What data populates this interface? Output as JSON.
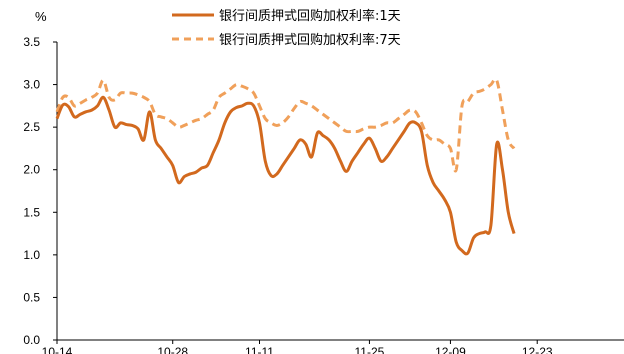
{
  "chart_data": {
    "type": "line",
    "unit_label": "%",
    "ylim": [
      0,
      3.5
    ],
    "yticks": [
      "0.0",
      "0.5",
      "1.0",
      "1.5",
      "2.0",
      "2.5",
      "3.0",
      "3.5"
    ],
    "xlim": [
      0,
      98
    ],
    "xticks": [
      {
        "x": 0,
        "label": "10-14"
      },
      {
        "x": 20,
        "label": "10-28"
      },
      {
        "x": 35,
        "label": "11-11"
      },
      {
        "x": 54,
        "label": "11-25"
      },
      {
        "x": 68,
        "label": "12-09"
      },
      {
        "x": 83,
        "label": "12-23"
      }
    ],
    "grid": false,
    "legend_position": "top",
    "series": [
      {
        "name": "银行间质押式回购加权利率:1天",
        "style": "solid",
        "color": "#D2691E",
        "points": [
          [
            0,
            2.6
          ],
          [
            1,
            2.76
          ],
          [
            2,
            2.74
          ],
          [
            3,
            2.62
          ],
          [
            4,
            2.65
          ],
          [
            5,
            2.68
          ],
          [
            6,
            2.7
          ],
          [
            7,
            2.75
          ],
          [
            8,
            2.85
          ],
          [
            9,
            2.7
          ],
          [
            10,
            2.5
          ],
          [
            11,
            2.55
          ],
          [
            12,
            2.53
          ],
          [
            13,
            2.52
          ],
          [
            14,
            2.48
          ],
          [
            15,
            2.35
          ],
          [
            16,
            2.68
          ],
          [
            17,
            2.35
          ],
          [
            18,
            2.25
          ],
          [
            19,
            2.15
          ],
          [
            20,
            2.05
          ],
          [
            21,
            1.85
          ],
          [
            22,
            1.92
          ],
          [
            23,
            1.95
          ],
          [
            24,
            1.97
          ],
          [
            25,
            2.02
          ],
          [
            26,
            2.05
          ],
          [
            27,
            2.2
          ],
          [
            28,
            2.35
          ],
          [
            29,
            2.55
          ],
          [
            30,
            2.68
          ],
          [
            31,
            2.73
          ],
          [
            32,
            2.75
          ],
          [
            33,
            2.78
          ],
          [
            34,
            2.75
          ],
          [
            35,
            2.55
          ],
          [
            36,
            2.1
          ],
          [
            37,
            1.93
          ],
          [
            38,
            1.95
          ],
          [
            39,
            2.05
          ],
          [
            40,
            2.15
          ],
          [
            41,
            2.25
          ],
          [
            42,
            2.35
          ],
          [
            43,
            2.3
          ],
          [
            44,
            2.15
          ],
          [
            45,
            2.43
          ],
          [
            46,
            2.4
          ],
          [
            47,
            2.35
          ],
          [
            48,
            2.25
          ],
          [
            49,
            2.1
          ],
          [
            50,
            1.98
          ],
          [
            51,
            2.1
          ],
          [
            52,
            2.2
          ],
          [
            53,
            2.3
          ],
          [
            54,
            2.37
          ],
          [
            55,
            2.25
          ],
          [
            56,
            2.1
          ],
          [
            57,
            2.15
          ],
          [
            58,
            2.25
          ],
          [
            59,
            2.35
          ],
          [
            60,
            2.45
          ],
          [
            61,
            2.55
          ],
          [
            62,
            2.55
          ],
          [
            63,
            2.45
          ],
          [
            64,
            2.05
          ],
          [
            65,
            1.85
          ],
          [
            66,
            1.75
          ],
          [
            67,
            1.65
          ],
          [
            68,
            1.5
          ],
          [
            69,
            1.15
          ],
          [
            70,
            1.05
          ],
          [
            71,
            1.02
          ],
          [
            72,
            1.2
          ],
          [
            73,
            1.25
          ],
          [
            74,
            1.27
          ],
          [
            75,
            1.35
          ],
          [
            76,
            2.3
          ],
          [
            77,
            2.0
          ],
          [
            78,
            1.5
          ],
          [
            79,
            1.25
          ]
        ]
      },
      {
        "name": "银行间质押式回购加权利率:7天",
        "style": "dashed",
        "color": "#F0A05A",
        "points": [
          [
            0,
            2.68
          ],
          [
            1,
            2.85
          ],
          [
            2,
            2.85
          ],
          [
            3,
            2.75
          ],
          [
            4,
            2.78
          ],
          [
            5,
            2.82
          ],
          [
            6,
            2.85
          ],
          [
            7,
            2.9
          ],
          [
            8,
            3.05
          ],
          [
            9,
            2.85
          ],
          [
            10,
            2.82
          ],
          [
            11,
            2.9
          ],
          [
            12,
            2.9
          ],
          [
            13,
            2.9
          ],
          [
            14,
            2.88
          ],
          [
            15,
            2.85
          ],
          [
            16,
            2.8
          ],
          [
            17,
            2.65
          ],
          [
            18,
            2.62
          ],
          [
            19,
            2.6
          ],
          [
            20,
            2.55
          ],
          [
            21,
            2.5
          ],
          [
            22,
            2.52
          ],
          [
            23,
            2.55
          ],
          [
            24,
            2.58
          ],
          [
            25,
            2.6
          ],
          [
            26,
            2.65
          ],
          [
            27,
            2.7
          ],
          [
            28,
            2.85
          ],
          [
            29,
            2.9
          ],
          [
            30,
            2.95
          ],
          [
            31,
            3.0
          ],
          [
            32,
            2.98
          ],
          [
            33,
            2.95
          ],
          [
            34,
            2.9
          ],
          [
            35,
            2.75
          ],
          [
            36,
            2.6
          ],
          [
            37,
            2.55
          ],
          [
            38,
            2.52
          ],
          [
            39,
            2.55
          ],
          [
            40,
            2.62
          ],
          [
            41,
            2.72
          ],
          [
            42,
            2.8
          ],
          [
            43,
            2.78
          ],
          [
            44,
            2.75
          ],
          [
            45,
            2.7
          ],
          [
            46,
            2.65
          ],
          [
            47,
            2.6
          ],
          [
            48,
            2.55
          ],
          [
            49,
            2.5
          ],
          [
            50,
            2.45
          ],
          [
            51,
            2.45
          ],
          [
            52,
            2.45
          ],
          [
            53,
            2.48
          ],
          [
            54,
            2.5
          ],
          [
            55,
            2.5
          ],
          [
            56,
            2.52
          ],
          [
            57,
            2.55
          ],
          [
            58,
            2.55
          ],
          [
            59,
            2.6
          ],
          [
            60,
            2.65
          ],
          [
            61,
            2.7
          ],
          [
            62,
            2.68
          ],
          [
            63,
            2.55
          ],
          [
            64,
            2.4
          ],
          [
            65,
            2.35
          ],
          [
            66,
            2.35
          ],
          [
            67,
            2.3
          ],
          [
            68,
            2.25
          ],
          [
            69,
            2.0
          ],
          [
            70,
            2.75
          ],
          [
            71,
            2.8
          ],
          [
            72,
            2.9
          ],
          [
            73,
            2.92
          ],
          [
            74,
            2.95
          ],
          [
            75,
            3.0
          ],
          [
            76,
            3.05
          ],
          [
            77,
            2.7
          ],
          [
            78,
            2.35
          ],
          [
            79,
            2.25
          ]
        ]
      }
    ]
  }
}
